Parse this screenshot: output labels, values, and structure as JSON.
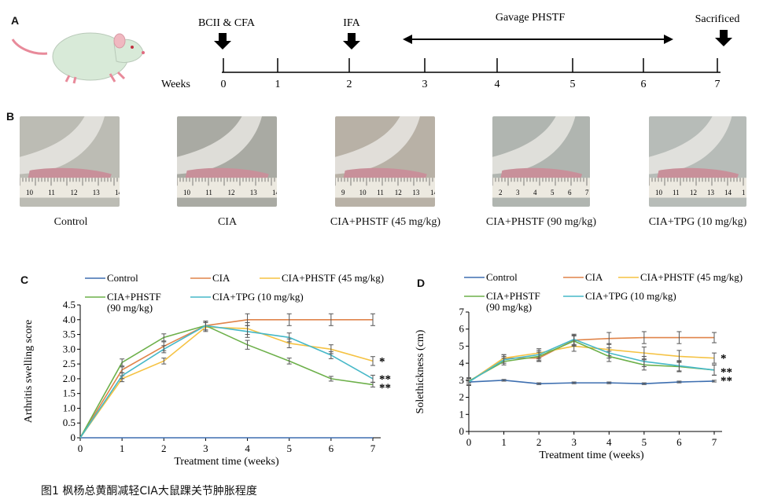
{
  "panels": {
    "a": "A",
    "b": "B",
    "c": "C",
    "d": "D"
  },
  "timeline": {
    "axis_label": "Weeks",
    "ticks": [
      "0",
      "1",
      "2",
      "3",
      "4",
      "5",
      "6",
      "7"
    ],
    "events": {
      "immunize": "BCII & CFA",
      "boost": "IFA",
      "gavage": "Gavage PHSTF",
      "end": "Sacrificed"
    }
  },
  "photos": [
    {
      "label": "Control",
      "ruler": [
        "10",
        "11",
        "12",
        "13",
        "14"
      ]
    },
    {
      "label": "CIA",
      "ruler": [
        "10",
        "11",
        "12",
        "13",
        "14"
      ]
    },
    {
      "label": "CIA+PHSTF (45 mg/kg)",
      "ruler": [
        "9",
        "10",
        "11",
        "12",
        "13",
        "14"
      ]
    },
    {
      "label": "CIA+PHSTF (90 mg/kg)",
      "ruler": [
        "2",
        "3",
        "4",
        "5",
        "6",
        "7"
      ]
    },
    {
      "label": "CIA+TPG (10 mg/kg)",
      "ruler": [
        "10",
        "11",
        "12",
        "13",
        "14",
        "1"
      ]
    }
  ],
  "legend": {
    "control": "Control",
    "cia": "CIA",
    "phstf45": "CIA+PHSTF (45 mg/kg)",
    "phstf90_line1": "CIA+PHSTF",
    "phstf90_line2": "(90 mg/kg)",
    "tpg": "CIA+TPG (10 mg/kg)"
  },
  "colors": {
    "control": "#3e6fb0",
    "cia": "#e0844a",
    "phstf45": "#f5c242",
    "phstf90": "#6db04a",
    "tpg": "#46b8c8"
  },
  "chart_data": [
    {
      "type": "line",
      "xlabel": "Treatment time (weeks)",
      "ylabel": "Arthritis swelling score",
      "x": [
        0,
        1,
        2,
        3,
        4,
        5,
        6,
        7
      ],
      "xlim": [
        0,
        7
      ],
      "ylim": [
        0,
        4.5
      ],
      "yticks": [
        0,
        0.5,
        1.0,
        1.5,
        2.0,
        2.5,
        3.0,
        3.5,
        4.0,
        4.5
      ],
      "ytick_labels": [
        "0",
        "0.5",
        "1.0",
        "1.5",
        "2.0",
        "2.5",
        "3.0",
        "3.5",
        "4.0",
        "4.5"
      ],
      "series": [
        {
          "name": "Control",
          "key": "control",
          "values": [
            0,
            0,
            0,
            0,
            0,
            0,
            0,
            0
          ],
          "errors": [
            0,
            0,
            0,
            0,
            0,
            0,
            0,
            0
          ]
        },
        {
          "name": "CIA",
          "key": "cia",
          "values": [
            0,
            2.3,
            3.1,
            3.8,
            4.0,
            4.0,
            4.0,
            4.0
          ],
          "errors": [
            0,
            0.1,
            0.15,
            0.15,
            0.2,
            0.2,
            0.2,
            0.2
          ]
        },
        {
          "name": "CIA+PHSTF (45 mg/kg)",
          "key": "phstf45",
          "values": [
            0,
            2.0,
            2.6,
            3.75,
            3.7,
            3.2,
            3.0,
            2.6
          ],
          "errors": [
            0,
            0.1,
            0.1,
            0.15,
            0.2,
            0.15,
            0.15,
            0.15
          ]
        },
        {
          "name": "CIA+PHSTF (90 mg/kg)",
          "key": "phstf90",
          "values": [
            0,
            2.55,
            3.4,
            3.8,
            3.15,
            2.6,
            2.0,
            1.8
          ],
          "errors": [
            0,
            0.12,
            0.12,
            0.15,
            0.15,
            0.1,
            0.08,
            0.08
          ]
        },
        {
          "name": "CIA+TPG (10 mg/kg)",
          "key": "tpg",
          "values": [
            0,
            2.1,
            3.0,
            3.8,
            3.6,
            3.4,
            2.8,
            2.0
          ],
          "errors": [
            0,
            0.1,
            0.12,
            0.15,
            0.2,
            0.15,
            0.12,
            0.12
          ]
        }
      ],
      "annotations": [
        {
          "text": "*",
          "y": 2.6
        },
        {
          "text": "**",
          "y": 2.0
        },
        {
          "text": "**",
          "y": 1.7
        }
      ]
    },
    {
      "type": "line",
      "xlabel": "Treatment time (weeks)",
      "ylabel": "Solethickness (cm)",
      "x": [
        0,
        1,
        2,
        3,
        4,
        5,
        6,
        7
      ],
      "xlim": [
        0,
        7
      ],
      "ylim": [
        0,
        7
      ],
      "yticks": [
        0,
        1,
        2,
        3,
        4,
        5,
        6,
        7
      ],
      "ytick_labels": [
        "0",
        "1",
        "2",
        "3",
        "4",
        "5",
        "6",
        "7"
      ],
      "series": [
        {
          "name": "Control",
          "key": "control",
          "values": [
            2.9,
            3.0,
            2.8,
            2.85,
            2.85,
            2.8,
            2.9,
            2.95
          ],
          "errors": [
            0.05,
            0.05,
            0.05,
            0.05,
            0.05,
            0.05,
            0.05,
            0.05
          ]
        },
        {
          "name": "CIA",
          "key": "cia",
          "values": [
            2.9,
            4.3,
            4.3,
            5.35,
            5.45,
            5.5,
            5.5,
            5.5
          ],
          "errors": [
            0.2,
            0.2,
            0.2,
            0.3,
            0.35,
            0.35,
            0.35,
            0.3
          ]
        },
        {
          "name": "CIA+PHSTF (45 mg/kg)",
          "key": "phstf45",
          "values": [
            2.9,
            4.3,
            4.6,
            5.0,
            4.8,
            4.6,
            4.4,
            4.3
          ],
          "errors": [
            0.2,
            0.2,
            0.25,
            0.3,
            0.35,
            0.35,
            0.35,
            0.3
          ]
        },
        {
          "name": "CIA+PHSTF (90 mg/kg)",
          "key": "phstf90",
          "values": [
            2.95,
            4.1,
            4.4,
            5.3,
            4.4,
            3.9,
            3.8,
            3.6
          ],
          "errors": [
            0.2,
            0.2,
            0.25,
            0.3,
            0.3,
            0.3,
            0.3,
            0.3
          ]
        },
        {
          "name": "CIA+TPG (10 mg/kg)",
          "key": "tpg",
          "values": [
            2.9,
            4.2,
            4.5,
            5.4,
            4.6,
            4.1,
            3.85,
            3.6
          ],
          "errors": [
            0.2,
            0.2,
            0.25,
            0.3,
            0.3,
            0.3,
            0.3,
            0.3
          ]
        }
      ],
      "annotations": [
        {
          "text": "*",
          "y": 4.3
        },
        {
          "text": "**",
          "y": 3.5
        },
        {
          "text": "**",
          "y": 3.0
        }
      ]
    }
  ],
  "caption": "图1  枫杨总黄酮减轻CIA大鼠踝关节肿胀程度"
}
